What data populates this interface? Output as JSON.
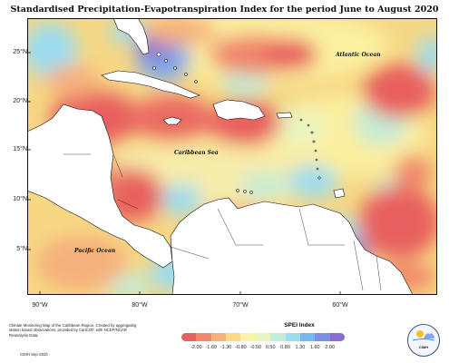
{
  "title": "Standardised Precipitation-Evapotranspiration Index for the period June to August 2020",
  "map": {
    "region": "Caribbean",
    "ocean_labels": {
      "atlantic": "Atlantic Ocean",
      "caribbean": "Caribbean Sea",
      "pacific": "Pacific Ocean"
    },
    "lat_ticks": [
      "25°N",
      "20°N",
      "15°N",
      "10°N",
      "5°N"
    ],
    "lon_ticks": [
      "90°W",
      "80°W",
      "70°W",
      "60°W"
    ],
    "colors": {
      "land": "#ffffff",
      "coast": "#111111"
    }
  },
  "footer": {
    "note": "Climate Monitoring Map of the Caribbean Region. Created by aggregating station based observations, provided by CariCOF, with NCEP/NCAR Reanalysis Data.",
    "credit": "CIMH Sep-2020",
    "logo_text": "CIMH"
  },
  "legend": {
    "title": "SPEI Index",
    "colors": [
      "#e8615f",
      "#f0876a",
      "#f6b07a",
      "#fbd985",
      "#fbf3a4",
      "#e8f5c0",
      "#c3ecd6",
      "#9bdcef",
      "#78b8ef",
      "#7d8fe2",
      "#8b6dd0"
    ],
    "ticks": [
      "-2.00",
      "-1.60",
      "-1.30",
      "-0.80",
      "-0.50",
      "0.50",
      "0.80",
      "1.30",
      "1.60",
      "2.00"
    ]
  }
}
